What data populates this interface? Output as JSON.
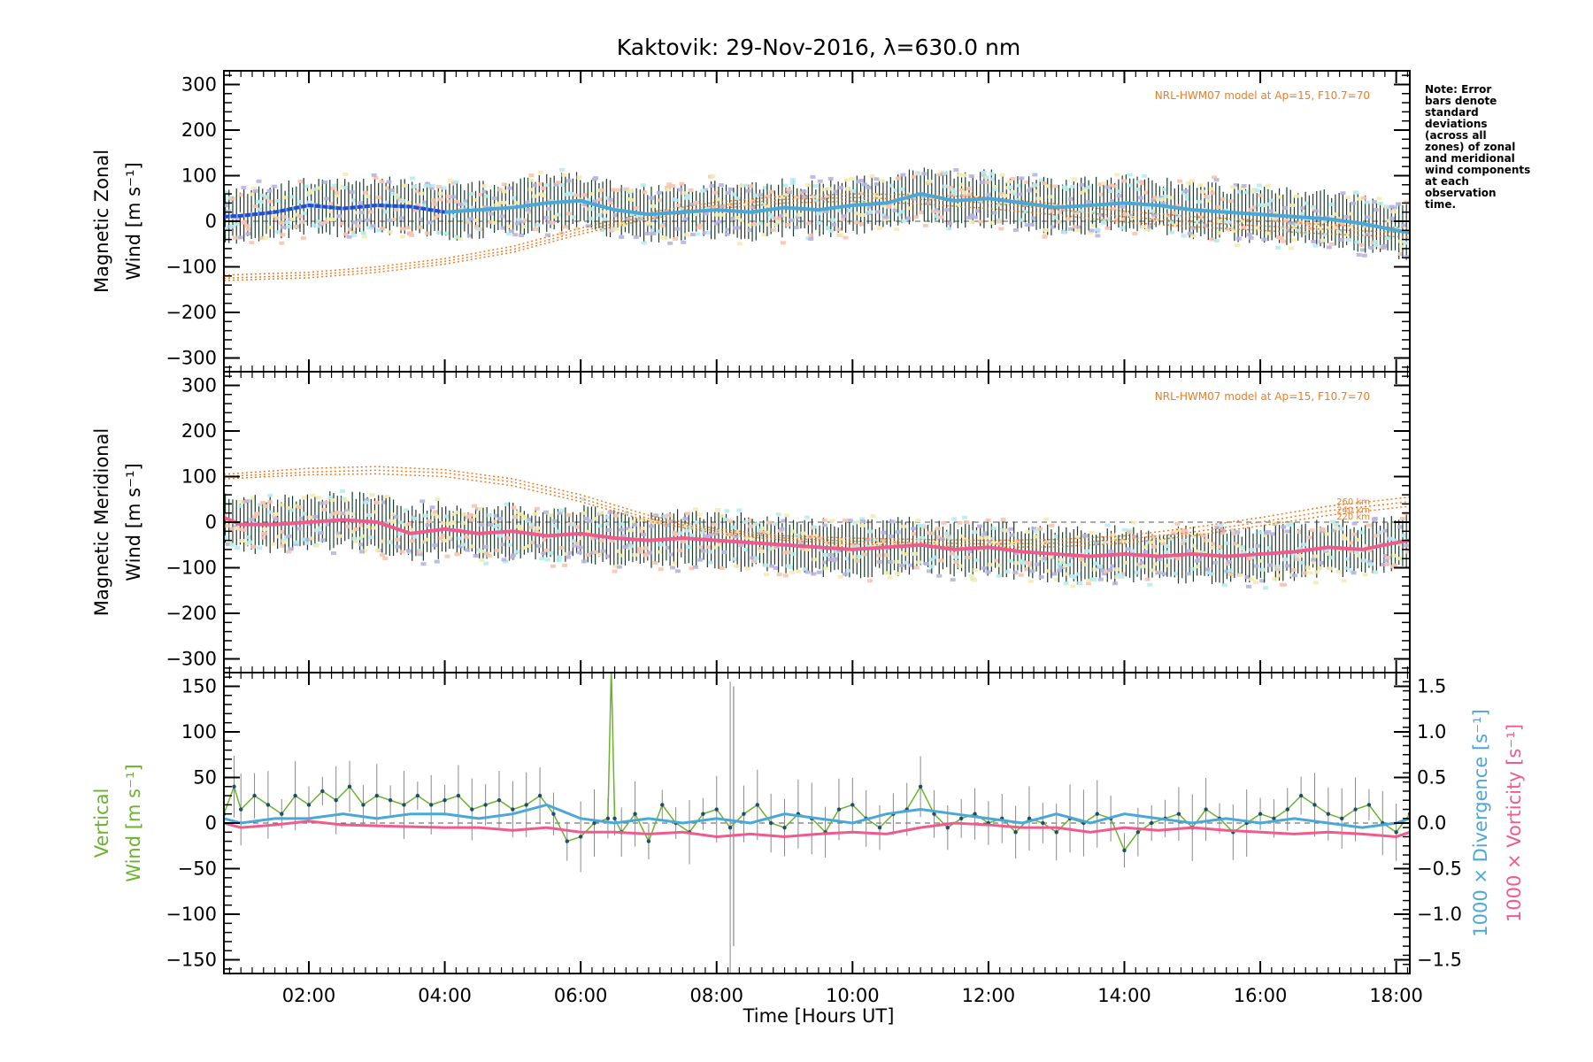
{
  "chart_data": {
    "type": "line",
    "title": "Kaktovik: 29-Nov-2016, λ=630.0 nm",
    "xlabel": "Time [Hours UT]",
    "x_range_hours": [
      0.75,
      18.2
    ],
    "x_tick_hours": [
      2,
      4,
      6,
      8,
      10,
      12,
      14,
      16,
      18
    ],
    "x_tick_labels": [
      "02:00",
      "04:00",
      "06:00",
      "08:00",
      "10:00",
      "12:00",
      "14:00",
      "16:00",
      "18:00"
    ],
    "note": "Note: Error bars denote standard deviations (across all zones) of zonal and meridional wind components at each observation time.",
    "colors": {
      "zonal_mean": "#4aa8d8",
      "zonal_mean_early": "#2b46d8",
      "meridional_mean": "#f05a8c",
      "model": "#f07b1e",
      "vertical": "#6ab42c",
      "divergence": "#4aa8d8",
      "vorticity": "#f05a8c",
      "errorbar": "#1a3a2a",
      "scatter_purple": "#b8b4e0",
      "scatter_pink": "#f8c4b0",
      "scatter_yellow": "#f4ecb0",
      "scatter_cyan": "#b8ecf0"
    },
    "panels": [
      {
        "id": "zonal",
        "ylabel_line1": "Magnetic Zonal",
        "ylabel_line2": "Wind [m s⁻¹]",
        "ylim": [
          -330,
          330
        ],
        "y_ticks": [
          -300,
          -200,
          -100,
          0,
          100,
          200,
          300
        ],
        "y_tick_labels": [
          "−300",
          "−200",
          "−100",
          "0",
          "100",
          "200",
          "300"
        ],
        "model_label": "NRL-HWM07 model at Ap=15, F10.7=70",
        "mean_series": {
          "x": [
            0.75,
            1.0,
            1.5,
            2.0,
            2.5,
            3.0,
            3.5,
            4.0,
            4.5,
            5.0,
            5.5,
            6.0,
            6.5,
            7.0,
            7.5,
            8.0,
            8.5,
            9.0,
            9.5,
            10.0,
            10.5,
            11.0,
            11.5,
            12.0,
            12.5,
            13.0,
            13.5,
            14.0,
            14.5,
            15.0,
            15.5,
            16.0,
            16.5,
            17.0,
            17.5,
            18.0,
            18.2
          ],
          "y": [
            10,
            12,
            20,
            35,
            28,
            35,
            32,
            20,
            25,
            30,
            40,
            45,
            25,
            15,
            20,
            25,
            20,
            30,
            25,
            35,
            40,
            60,
            45,
            50,
            40,
            30,
            35,
            40,
            35,
            25,
            20,
            15,
            10,
            5,
            -5,
            -20,
            -25
          ]
        },
        "model_series": [
          {
            "name": "260 km",
            "x": [
              0.75,
              2,
              3,
              4,
              5,
              6,
              7,
              8,
              9,
              10,
              11,
              12,
              13,
              14,
              15,
              16,
              17,
              18.2
            ],
            "y": [
              -118,
              -112,
              -100,
              -82,
              -55,
              -15,
              20,
              42,
              55,
              60,
              58,
              52,
              38,
              22,
              10,
              2,
              -8,
              -15
            ]
          },
          {
            "name": "240 km",
            "x": [
              0.75,
              2,
              3,
              4,
              5,
              6,
              7,
              8,
              9,
              10,
              11,
              12,
              13,
              14,
              15,
              16,
              17,
              18.2
            ],
            "y": [
              -125,
              -118,
              -106,
              -88,
              -62,
              -22,
              12,
              35,
              48,
              52,
              48,
              40,
              26,
              10,
              -2,
              -10,
              -18,
              -25
            ]
          },
          {
            "name": "220 km",
            "x": [
              0.75,
              2,
              3,
              4,
              5,
              6,
              7,
              8,
              9,
              10,
              11,
              12,
              13,
              14,
              15,
              16,
              17,
              18.2
            ],
            "y": [
              -130,
              -124,
              -112,
              -94,
              -68,
              -28,
              5,
              28,
              40,
              44,
              38,
              28,
              14,
              -2,
              -12,
              -20,
              -28,
              -35
            ]
          }
        ]
      },
      {
        "id": "meridional",
        "ylabel_line1": "Magnetic Meridional",
        "ylabel_line2": "Wind [m s⁻¹]",
        "ylim": [
          -330,
          330
        ],
        "y_ticks": [
          -300,
          -200,
          -100,
          0,
          100,
          200,
          300
        ],
        "y_tick_labels": [
          "−300",
          "−200",
          "−100",
          "0",
          "100",
          "200",
          "300"
        ],
        "model_label": "NRL-HWM07 model at Ap=15, F10.7=70",
        "mean_series": {
          "x": [
            0.75,
            1.0,
            1.5,
            2.0,
            2.5,
            3.0,
            3.5,
            4.0,
            4.5,
            5.0,
            5.5,
            6.0,
            6.5,
            7.0,
            7.5,
            8.0,
            8.5,
            9.0,
            9.5,
            10.0,
            10.5,
            11.0,
            11.5,
            12.0,
            12.5,
            13.0,
            13.5,
            14.0,
            14.5,
            15.0,
            15.5,
            16.0,
            16.5,
            17.0,
            17.5,
            18.0,
            18.2
          ],
          "y": [
            10,
            -5,
            -5,
            0,
            5,
            0,
            -25,
            -15,
            -25,
            -20,
            -30,
            -25,
            -35,
            -40,
            -35,
            -40,
            -45,
            -50,
            -55,
            -60,
            -55,
            -50,
            -60,
            -55,
            -65,
            -70,
            -75,
            -70,
            -75,
            -70,
            -75,
            -70,
            -65,
            -55,
            -60,
            -45,
            -40
          ]
        },
        "model_series": [
          {
            "name": "260 km",
            "x": [
              0.75,
              2,
              3,
              4,
              5,
              6,
              7,
              8,
              9,
              10,
              11,
              12,
              13,
              14,
              15,
              16,
              17,
              18.2
            ],
            "y": [
              105,
              118,
              122,
              115,
              95,
              60,
              15,
              -15,
              -30,
              -35,
              -38,
              -40,
              -38,
              -30,
              -12,
              10,
              35,
              55
            ]
          },
          {
            "name": "240 km",
            "x": [
              0.75,
              2,
              3,
              4,
              5,
              6,
              7,
              8,
              9,
              10,
              11,
              12,
              13,
              14,
              15,
              16,
              17,
              18.2
            ],
            "y": [
              100,
              110,
              114,
              108,
              88,
              52,
              8,
              -20,
              -35,
              -42,
              -45,
              -48,
              -46,
              -38,
              -22,
              0,
              25,
              45
            ]
          },
          {
            "name": "220 km",
            "x": [
              0.75,
              2,
              3,
              4,
              5,
              6,
              7,
              8,
              9,
              10,
              11,
              12,
              13,
              14,
              15,
              16,
              17,
              18.2
            ],
            "y": [
              95,
              104,
              106,
              100,
              80,
              45,
              2,
              -25,
              -40,
              -48,
              -52,
              -55,
              -54,
              -46,
              -30,
              -8,
              15,
              35
            ]
          }
        ],
        "altitude_labels": [
          "260 km",
          "240 km",
          "220 km"
        ]
      },
      {
        "id": "vertical",
        "ylabel_line1": "Vertical",
        "ylabel_line2": "Wind [m s⁻¹]",
        "ylim": [
          -165,
          165
        ],
        "y_ticks": [
          -150,
          -100,
          -50,
          0,
          50,
          100,
          150
        ],
        "y_tick_labels": [
          "−150",
          "−100",
          "−50",
          "0",
          "50",
          "100",
          "150"
        ],
        "right_ylim": [
          -1.65,
          1.65
        ],
        "right_y_ticks": [
          -1.5,
          -1.0,
          -0.5,
          0.0,
          0.5,
          1.0,
          1.5
        ],
        "right_y_tick_labels": [
          "−1.5",
          "−1.0",
          "−0.5",
          "0.0",
          "0.5",
          "1.0",
          "1.5"
        ],
        "right_label_divergence": "1000 × Divergence [s⁻¹]",
        "right_label_vorticity": "1000 × Vorticity [s⁻¹]",
        "vertical_series": {
          "name": "Vertical",
          "x": [
            0.75,
            0.9,
            1.0,
            1.2,
            1.4,
            1.6,
            1.8,
            2.0,
            2.2,
            2.4,
            2.6,
            2.8,
            3.0,
            3.2,
            3.4,
            3.6,
            3.8,
            4.0,
            4.2,
            4.4,
            4.6,
            4.8,
            5.0,
            5.2,
            5.4,
            5.6,
            5.8,
            6.0,
            6.2,
            6.4,
            6.45,
            6.5,
            6.6,
            6.8,
            7.0,
            7.2,
            7.4,
            7.6,
            7.8,
            8.0,
            8.2,
            8.4,
            8.6,
            8.8,
            9.0,
            9.2,
            9.4,
            9.6,
            9.8,
            10.0,
            10.2,
            10.4,
            10.6,
            10.8,
            11.0,
            11.2,
            11.4,
            11.6,
            11.8,
            12.0,
            12.2,
            12.4,
            12.6,
            12.8,
            13.0,
            13.2,
            13.4,
            13.6,
            13.8,
            14.0,
            14.2,
            14.4,
            14.6,
            14.8,
            15.0,
            15.2,
            15.4,
            15.6,
            15.8,
            16.0,
            16.2,
            16.4,
            16.6,
            16.8,
            17.0,
            17.2,
            17.4,
            17.6,
            17.8,
            18.0,
            18.2
          ],
          "y": [
            10,
            40,
            15,
            30,
            20,
            10,
            30,
            20,
            35,
            25,
            40,
            20,
            30,
            25,
            20,
            30,
            20,
            25,
            30,
            15,
            20,
            25,
            15,
            20,
            30,
            10,
            -20,
            -15,
            0,
            5,
            170,
            5,
            -10,
            10,
            -20,
            20,
            0,
            -10,
            10,
            15,
            -5,
            10,
            20,
            0,
            -5,
            10,
            5,
            -10,
            15,
            20,
            5,
            -5,
            10,
            15,
            40,
            10,
            -5,
            5,
            10,
            0,
            5,
            -10,
            5,
            0,
            -10,
            5,
            0,
            10,
            5,
            -30,
            -10,
            0,
            5,
            10,
            -5,
            15,
            5,
            -10,
            0,
            10,
            5,
            15,
            30,
            20,
            10,
            5,
            15,
            20,
            0,
            -10,
            10
          ]
        },
        "divergence_series": {
          "x": [
            0.75,
            1.0,
            1.5,
            2.0,
            2.5,
            3.0,
            3.5,
            4.0,
            4.5,
            5.0,
            5.5,
            6.0,
            6.5,
            7.0,
            7.5,
            8.0,
            8.5,
            9.0,
            9.5,
            10.0,
            10.5,
            11.0,
            11.5,
            12.0,
            12.5,
            13.0,
            13.5,
            14.0,
            14.5,
            15.0,
            15.5,
            16.0,
            16.5,
            17.0,
            17.5,
            18.0,
            18.2
          ],
          "y": [
            0.05,
            0.0,
            0.05,
            0.05,
            0.1,
            0.05,
            0.1,
            0.1,
            0.05,
            0.1,
            0.2,
            0.05,
            0.0,
            0.05,
            0.0,
            0.05,
            0.0,
            0.1,
            0.05,
            0.0,
            0.1,
            0.15,
            0.1,
            0.05,
            0.0,
            0.1,
            0.0,
            0.1,
            0.05,
            0.0,
            0.05,
            0.0,
            0.05,
            0.0,
            -0.05,
            0.0,
            0.05
          ]
        },
        "vorticity_series": {
          "x": [
            0.75,
            1.0,
            1.5,
            2.0,
            2.5,
            3.0,
            3.5,
            4.0,
            4.5,
            5.0,
            5.5,
            6.0,
            6.5,
            7.0,
            7.5,
            8.0,
            8.5,
            9.0,
            9.5,
            10.0,
            10.5,
            11.0,
            11.5,
            12.0,
            12.5,
            13.0,
            13.5,
            14.0,
            14.5,
            15.0,
            15.5,
            16.0,
            16.5,
            17.0,
            17.5,
            18.0,
            18.2
          ],
          "y": [
            0.0,
            -0.05,
            -0.02,
            0.02,
            -0.02,
            -0.03,
            -0.04,
            -0.05,
            -0.05,
            -0.08,
            -0.05,
            -0.1,
            -0.1,
            -0.12,
            -0.1,
            -0.15,
            -0.12,
            -0.15,
            -0.12,
            -0.1,
            -0.12,
            -0.05,
            0.0,
            -0.02,
            -0.05,
            -0.05,
            -0.1,
            -0.05,
            -0.08,
            -0.05,
            -0.08,
            -0.1,
            -0.12,
            -0.1,
            -0.12,
            -0.15,
            -0.1
          ]
        }
      }
    ]
  }
}
